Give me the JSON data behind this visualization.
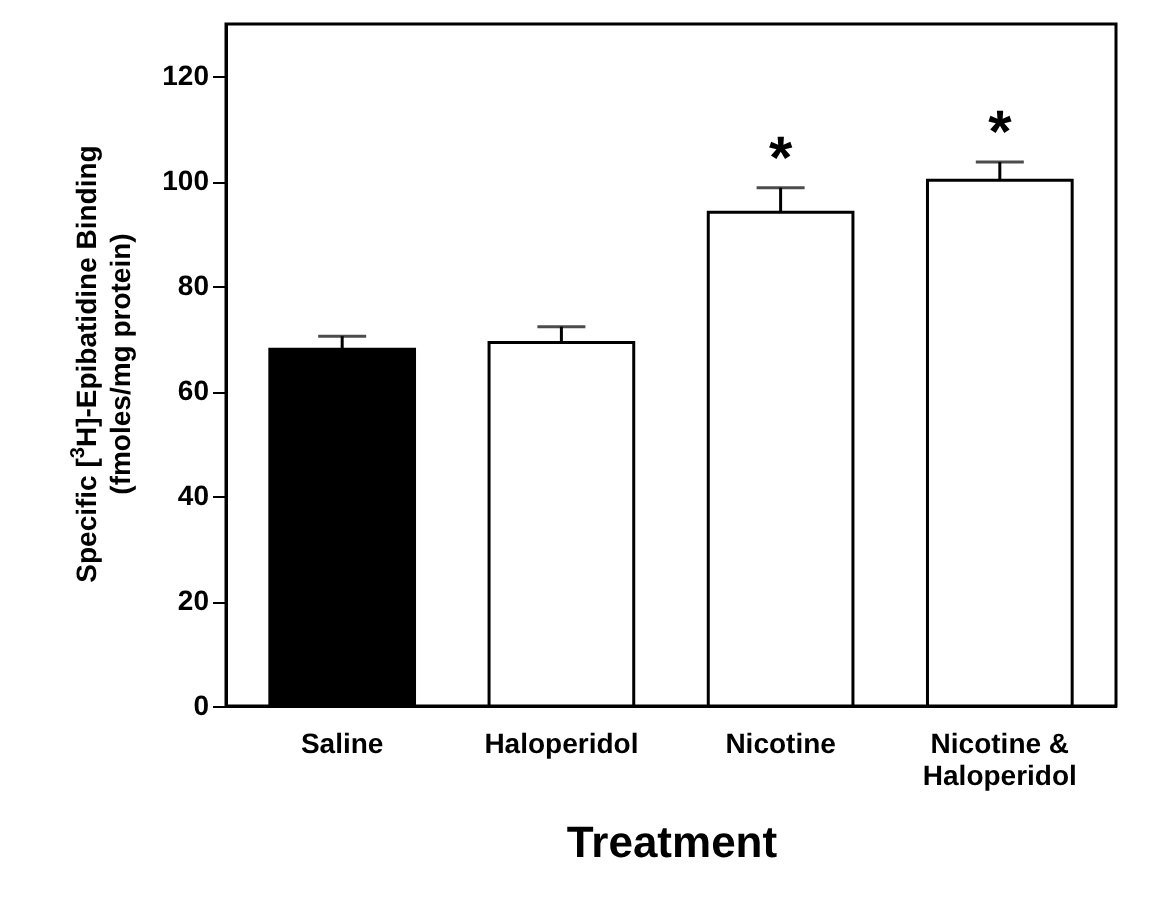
{
  "chart_data": {
    "type": "bar",
    "xlabel": "Treatment",
    "ylabel": "Specific [$^{3}$H]-Epibatidine Binding\n(fmoles/mg protein)",
    "categories": [
      "Saline",
      "Haloperidol",
      "Nicotine",
      "Nicotine & Haloperidol"
    ],
    "values": [
      68,
      69.3,
      94.1,
      100.2
    ],
    "errors": [
      2.5,
      3,
      4.7,
      3.5
    ],
    "colors": [
      "#000000",
      "#ffffff",
      "#ffffff",
      "#ffffff"
    ],
    "ylim": [
      0,
      130
    ],
    "yticks": [
      0,
      20,
      40,
      60,
      80,
      100,
      120
    ],
    "grid": false,
    "annotations": [
      {
        "text": "*",
        "x": "Nicotine",
        "y": 98.8
      },
      {
        "text": "*",
        "x": "Nicotine & Haloperidol",
        "y": 103.7
      }
    ]
  }
}
